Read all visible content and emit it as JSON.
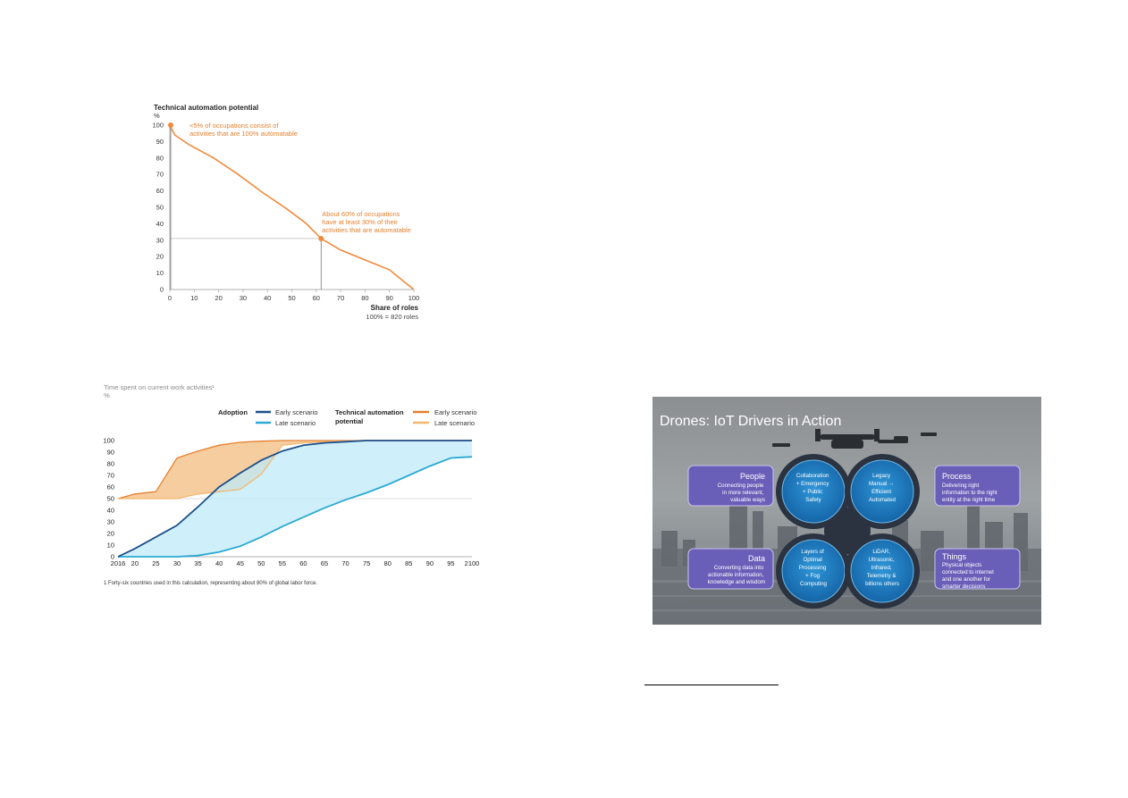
{
  "figure1": {
    "chart_data": {
      "type": "line",
      "title": "Technical automation potential",
      "ylabel": "%",
      "xlabel": "Share of roles",
      "xlabel_note": "100% = 820 roles",
      "xlim": [
        0,
        100
      ],
      "ylim": [
        0,
        100
      ],
      "xticks": [
        0,
        10,
        20,
        30,
        40,
        50,
        60,
        70,
        80,
        90,
        100
      ],
      "yticks": [
        0,
        10,
        20,
        30,
        40,
        50,
        60,
        70,
        80,
        90,
        100
      ],
      "series": [
        {
          "x": [
            0,
            2,
            8,
            18,
            28,
            38,
            48,
            56,
            62,
            70,
            80,
            90,
            95,
            100
          ],
          "y": [
            100,
            94,
            88,
            80,
            70,
            59,
            49,
            40,
            31,
            24,
            18,
            12,
            6,
            0
          ]
        }
      ],
      "annotations": [
        {
          "text_lines": [
            "<5% of occupations consist of",
            "activities that are 100% automatable"
          ],
          "x": 0,
          "y": 100
        },
        {
          "text_lines": [
            "About 60% of occupations",
            "have at least 30% of their",
            "activities that are automatable"
          ],
          "x": 62,
          "y": 31
        }
      ],
      "reference_lines": {
        "x": 62,
        "y": 31
      },
      "color": "#f08a3c"
    }
  },
  "figure2": {
    "chart_data": {
      "type": "area",
      "title": "Time spent on current work activities¹",
      "ylabel": "%",
      "xlim": [
        2016,
        2100
      ],
      "ylim": [
        0,
        100
      ],
      "xtick_labels": [
        "2016",
        "20",
        "25",
        "30",
        "35",
        "40",
        "45",
        "50",
        "55",
        "60",
        "65",
        "70",
        "75",
        "80",
        "85",
        "90",
        "95",
        "2100"
      ],
      "xtick_values": [
        2016,
        2020,
        2025,
        2030,
        2035,
        2040,
        2045,
        2050,
        2055,
        2060,
        2065,
        2070,
        2075,
        2080,
        2085,
        2090,
        2095,
        2100
      ],
      "yticks": [
        0,
        10,
        20,
        30,
        40,
        50,
        60,
        70,
        80,
        90,
        100
      ],
      "reference_y": 50,
      "legend": {
        "adoption_label": "Adoption",
        "tap_label_lines": [
          "Technical automation",
          "potential"
        ],
        "early": "Early scenario",
        "late": "Late scenario"
      },
      "series": [
        {
          "name": "Early scenario",
          "group": "Adoption",
          "color": "#1d4f8a",
          "x": [
            2016,
            2020,
            2025,
            2030,
            2035,
            2040,
            2045,
            2050,
            2055,
            2060,
            2065,
            2070,
            2075,
            2100
          ],
          "y": [
            0,
            7,
            17,
            27,
            43,
            60,
            72,
            83,
            91,
            96,
            98,
            99,
            100,
            100
          ]
        },
        {
          "name": "Late scenario",
          "group": "Adoption",
          "color": "#2aa9d2",
          "x": [
            2016,
            2020,
            2025,
            2030,
            2035,
            2040,
            2045,
            2050,
            2055,
            2060,
            2065,
            2070,
            2075,
            2080,
            2085,
            2090,
            2095,
            2100
          ],
          "y": [
            0,
            0,
            0,
            0,
            1,
            4,
            9,
            17,
            26,
            34,
            42,
            49,
            55,
            62,
            70,
            78,
            85,
            86
          ]
        },
        {
          "name": "Early scenario",
          "group": "Technical automation potential",
          "color": "#e5802f",
          "x": [
            2016,
            2020,
            2025,
            2030,
            2035,
            2040,
            2045,
            2050,
            2055,
            2060,
            2065,
            2070,
            2075,
            2100
          ],
          "y": [
            50,
            54,
            56,
            85,
            91,
            96,
            98.5,
            99.5,
            100,
            100,
            100,
            100,
            100,
            100
          ]
        },
        {
          "name": "Late scenario",
          "group": "Technical automation potential",
          "color": "#f2b872",
          "x": [
            2016,
            2020,
            2025,
            2030,
            2035,
            2040,
            2045,
            2050,
            2055,
            2060,
            2065,
            2070,
            2075,
            2100
          ],
          "y": [
            50,
            50,
            50,
            50,
            54,
            56,
            58,
            71,
            96,
            98,
            99,
            99.5,
            100,
            100
          ]
        }
      ],
      "footnote": "1  Forty-six countries used in this calculation, representing about 80% of global labor force."
    }
  },
  "figure3": {
    "title": "Drones: IoT Drivers in Action",
    "drivers": {
      "people": {
        "title": "People",
        "lines": [
          "Connecting people",
          "in more relevant,",
          "valuable ways"
        ]
      },
      "process": {
        "title": "Process",
        "lines": [
          "Delivering right",
          "information to the right",
          "entity at the right time"
        ]
      },
      "data": {
        "title": "Data",
        "lines": [
          "Converting data into",
          "actionable information,",
          "knowledge and wisdom"
        ]
      },
      "things": {
        "title": "Things",
        "lines": [
          "Physical objects",
          "connected to internet",
          "and one another for",
          "smarter decisions"
        ]
      }
    },
    "rotors": {
      "top_left": [
        "Collaboration",
        "+ Emergency",
        "+ Public",
        "Safety"
      ],
      "top_right": [
        "Legacy",
        "Manual →",
        "Efficient",
        "Automated"
      ],
      "bottom_left": [
        "Layers of",
        "Optimal",
        "Processing",
        "+ Fog",
        "Computing"
      ],
      "bottom_right": [
        "LiDAR,",
        "Ultrasonic,",
        "Infrared,",
        "Telemetry &",
        "billions others"
      ]
    },
    "colors": {
      "box": "#6a5fb8",
      "rotor": "#1f7fc4",
      "ring": "#2b3340"
    }
  }
}
